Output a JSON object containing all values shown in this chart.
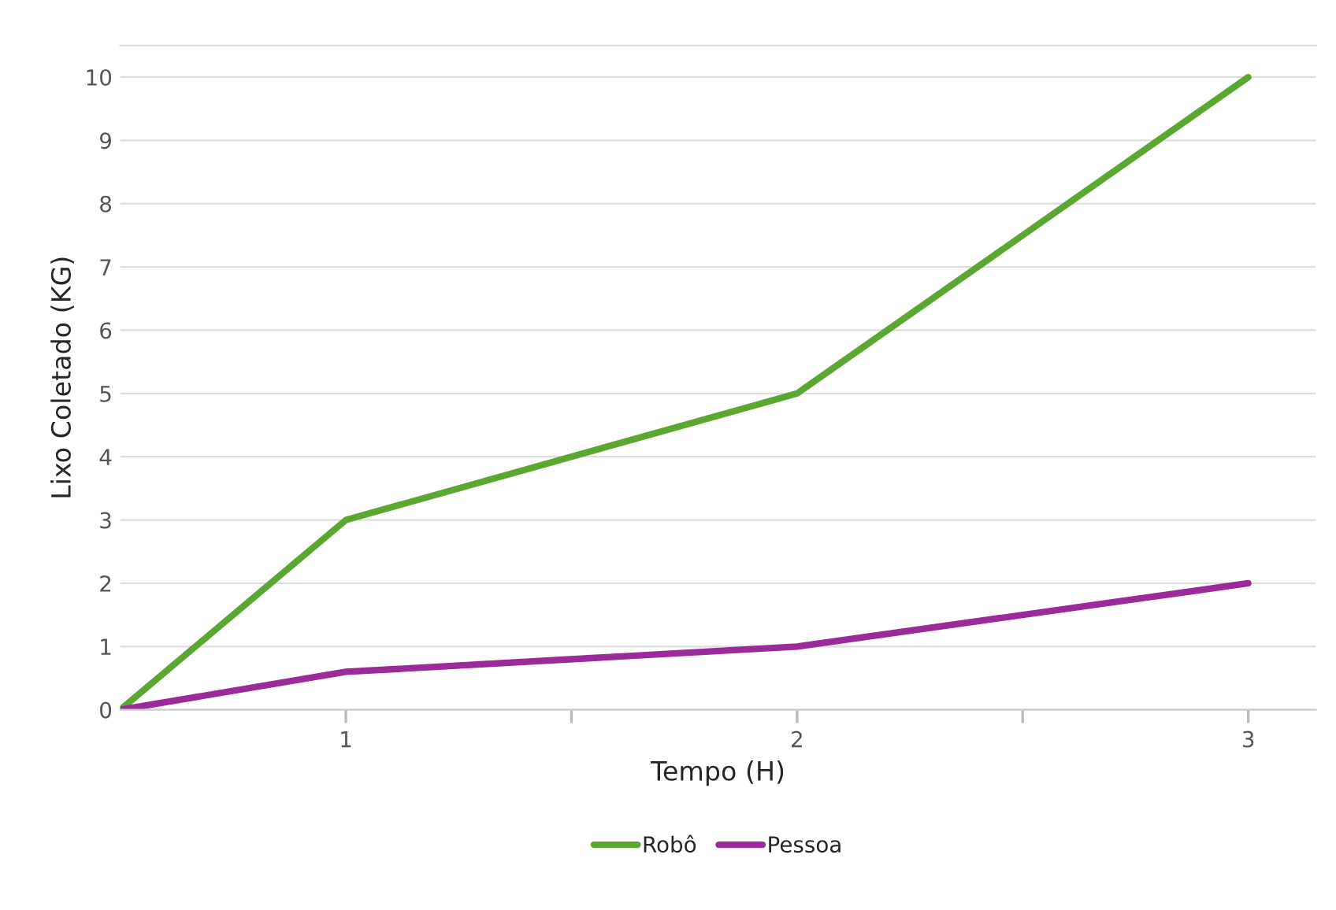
{
  "chart_data": {
    "type": "line",
    "xlabel": "Tempo (H)",
    "ylabel": "Lixo Coletado (KG)",
    "x": [
      0.5,
      1,
      2,
      3
    ],
    "series": [
      {
        "name": "Robô",
        "color": "#5aa832",
        "values": [
          0,
          3,
          5,
          10
        ]
      },
      {
        "name": "Pessoa",
        "color": "#9b2a9b",
        "values": [
          0,
          0.6,
          1,
          2
        ]
      }
    ],
    "xlim": [
      0.5,
      3.15
    ],
    "xticks": [
      1,
      {
        "value": 1.5,
        "label": null
      },
      2,
      {
        "value": 2.5,
        "label": null
      },
      3
    ],
    "ylim": [
      0,
      10.5
    ],
    "yticks": [
      0,
      1,
      2,
      3,
      4,
      5,
      6,
      7,
      8,
      9,
      10
    ],
    "grid": "y",
    "legend": "bottom",
    "marker": "none",
    "line_style": "solid"
  }
}
